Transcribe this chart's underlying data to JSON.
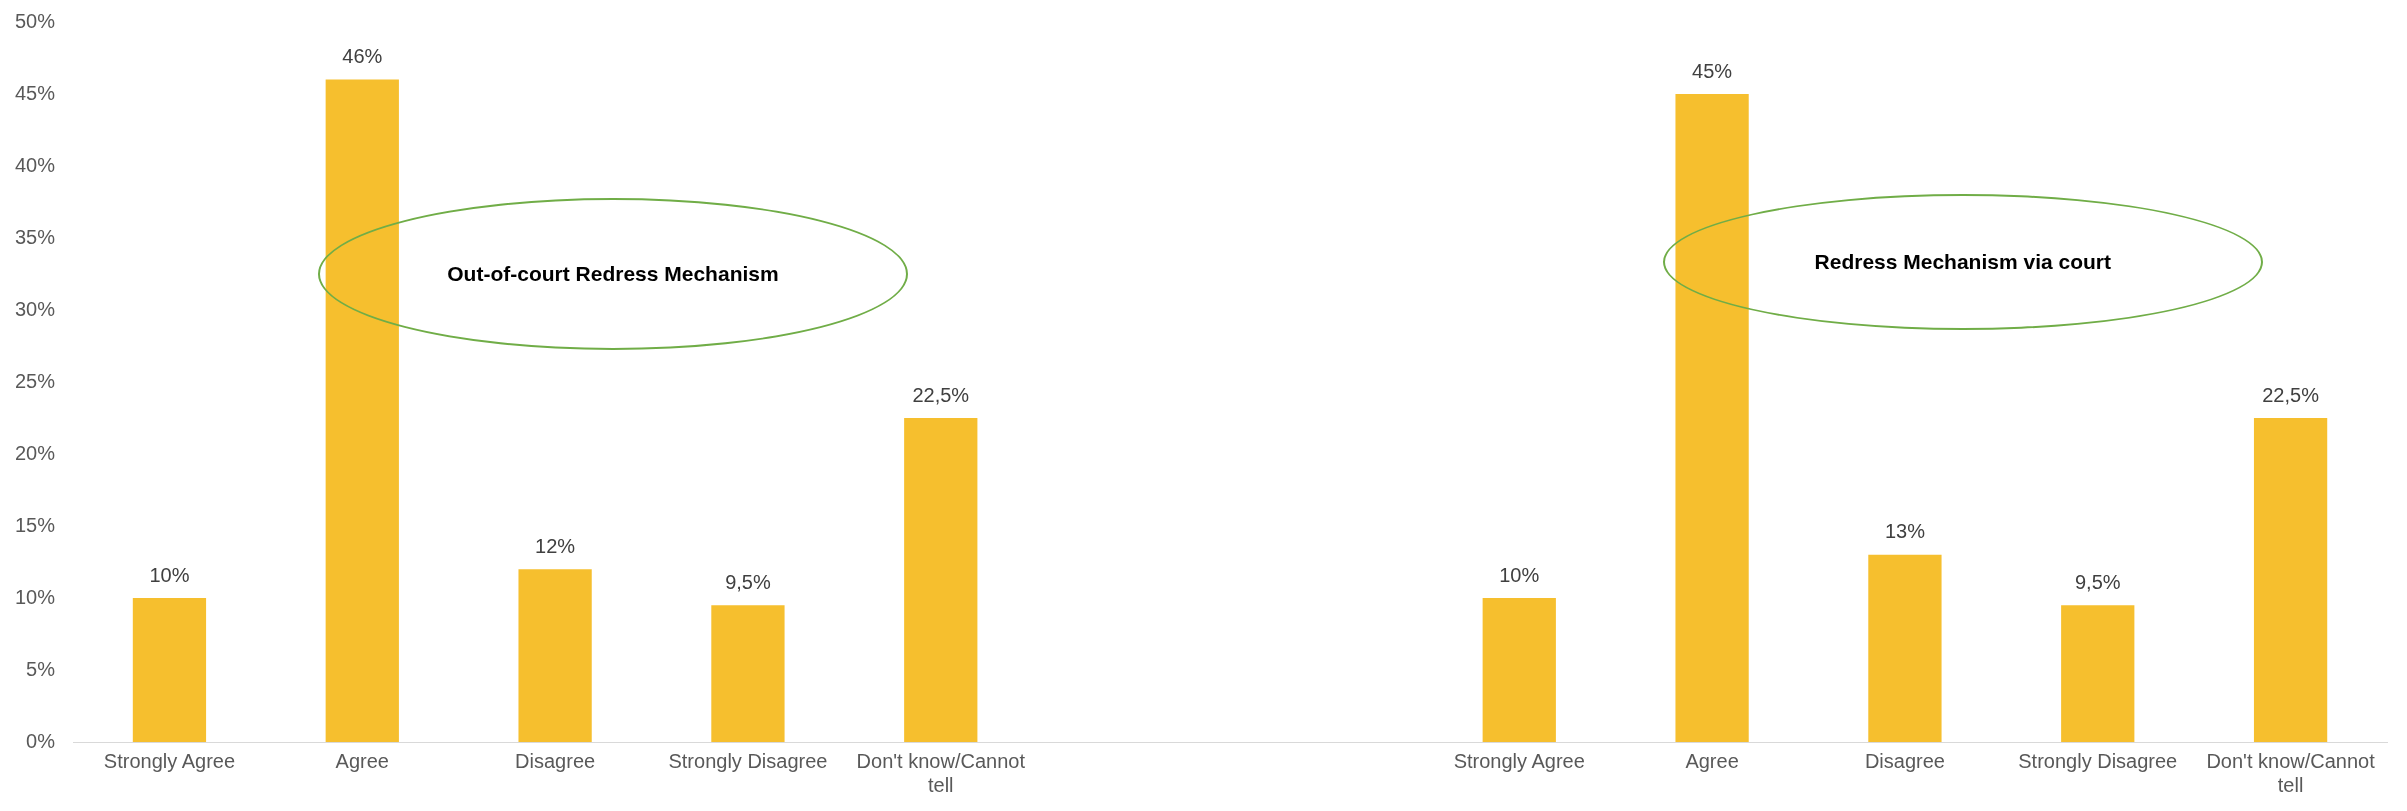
{
  "chart_data": {
    "type": "bar",
    "categories": [
      "Strongly Agree",
      "Agree",
      "Disagree",
      "Strongly Disagree",
      "Don't know/Cannot tell",
      null,
      null,
      "Strongly Agree",
      "Agree",
      "Disagree",
      "Strongly Disagree",
      "Don't know/Cannot tell"
    ],
    "values": [
      10,
      46,
      12,
      9.5,
      22.5,
      null,
      null,
      10,
      45,
      13,
      9.5,
      22.5
    ],
    "value_labels": [
      "10%",
      "46%",
      "12%",
      "9,5%",
      "22,5%",
      null,
      null,
      "10%",
      "45%",
      "13%",
      "9,5%",
      "22,5%"
    ],
    "color": "#f6bf2e",
    "ylim": [
      0,
      50
    ],
    "yticks": [
      {
        "value": 0,
        "label": "0%"
      },
      {
        "value": 5,
        "label": "5%"
      },
      {
        "value": 10,
        "label": "10%"
      },
      {
        "value": 15,
        "label": "15%"
      },
      {
        "value": 20,
        "label": "20%"
      },
      {
        "value": 25,
        "label": "25%"
      },
      {
        "value": 30,
        "label": "30%"
      },
      {
        "value": 35,
        "label": "35%"
      },
      {
        "value": 40,
        "label": "40%"
      },
      {
        "value": 45,
        "label": "45%"
      },
      {
        "value": 50,
        "label": "50%"
      }
    ],
    "annotations": [
      "Out-of-court Redress Mechanism",
      "Redress Mechanism via court"
    ]
  }
}
